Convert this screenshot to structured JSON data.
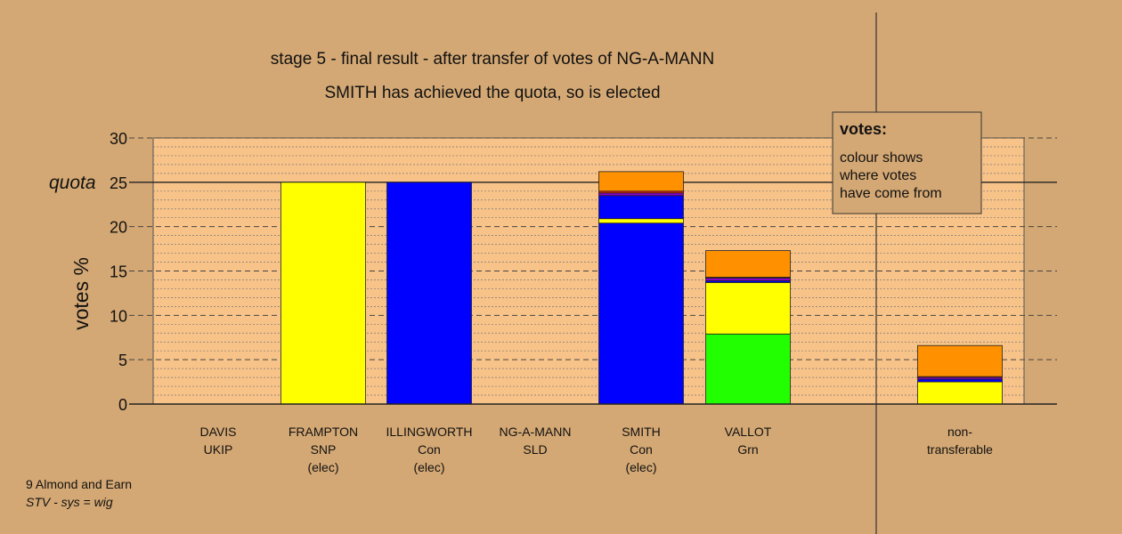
{
  "chart_data": {
    "type": "bar",
    "title": "stage 5 - final result - after transfer of votes of NG-A-MANN",
    "subtitle": "SMITH has achieved the quota, so is elected",
    "ylabel": "votes %",
    "ylim": [
      0,
      30
    ],
    "yticks": [
      0,
      5,
      10,
      15,
      20,
      25,
      30
    ],
    "quota": {
      "label": "quota",
      "value": 25
    },
    "grid": true,
    "categories": [
      {
        "lines": [
          "DAVIS",
          "UKIP"
        ],
        "stack": []
      },
      {
        "lines": [
          "FRAMPTON",
          "SNP",
          "(elec)"
        ],
        "stack": [
          {
            "value": 25.0,
            "color": "#ffff00"
          }
        ]
      },
      {
        "lines": [
          "ILLINGWORTH",
          "Con",
          "(elec)"
        ],
        "stack": [
          {
            "value": 25.0,
            "color": "#0000ff"
          }
        ]
      },
      {
        "lines": [
          "NG-A-MANN",
          "SLD"
        ],
        "stack": []
      },
      {
        "lines": [
          "SMITH",
          "Con",
          "(elec)"
        ],
        "stack": [
          {
            "value": 20.4,
            "color": "#0000ff"
          },
          {
            "value": 0.5,
            "color": "#ffff00"
          },
          {
            "value": 2.6,
            "color": "#0000ff"
          },
          {
            "value": 0.3,
            "color": "#8800cc"
          },
          {
            "value": 0.2,
            "color": "#ff2000"
          },
          {
            "value": 2.2,
            "color": "#ff9000"
          }
        ]
      },
      {
        "lines": [
          "VALLOT",
          "Grn"
        ],
        "stack": [
          {
            "value": 7.9,
            "color": "#22ff00"
          },
          {
            "value": 5.8,
            "color": "#ffff00"
          },
          {
            "value": 0.2,
            "color": "#0000ff"
          },
          {
            "value": 0.3,
            "color": "#8800cc"
          },
          {
            "value": 0.1,
            "color": "#ff2000"
          },
          {
            "value": 3.0,
            "color": "#ff9000"
          }
        ]
      },
      {
        "lines": [
          "non-",
          "transferable"
        ],
        "stack": [
          {
            "value": 2.5,
            "color": "#ffff00"
          },
          {
            "value": 0.3,
            "color": "#0000ff"
          },
          {
            "value": 0.2,
            "color": "#8800cc"
          },
          {
            "value": 0.1,
            "color": "#ff2000"
          },
          {
            "value": 3.5,
            "color": "#ff9000"
          }
        ]
      }
    ]
  },
  "legend": {
    "title": "votes:",
    "lines": [
      "colour shows",
      "where votes",
      "have come from"
    ]
  },
  "footer": {
    "line1": "9 Almond and Earn",
    "line2": "STV - sys = wig"
  },
  "colors": {
    "background": "#d4a874",
    "plot_background": "#f8c388"
  }
}
